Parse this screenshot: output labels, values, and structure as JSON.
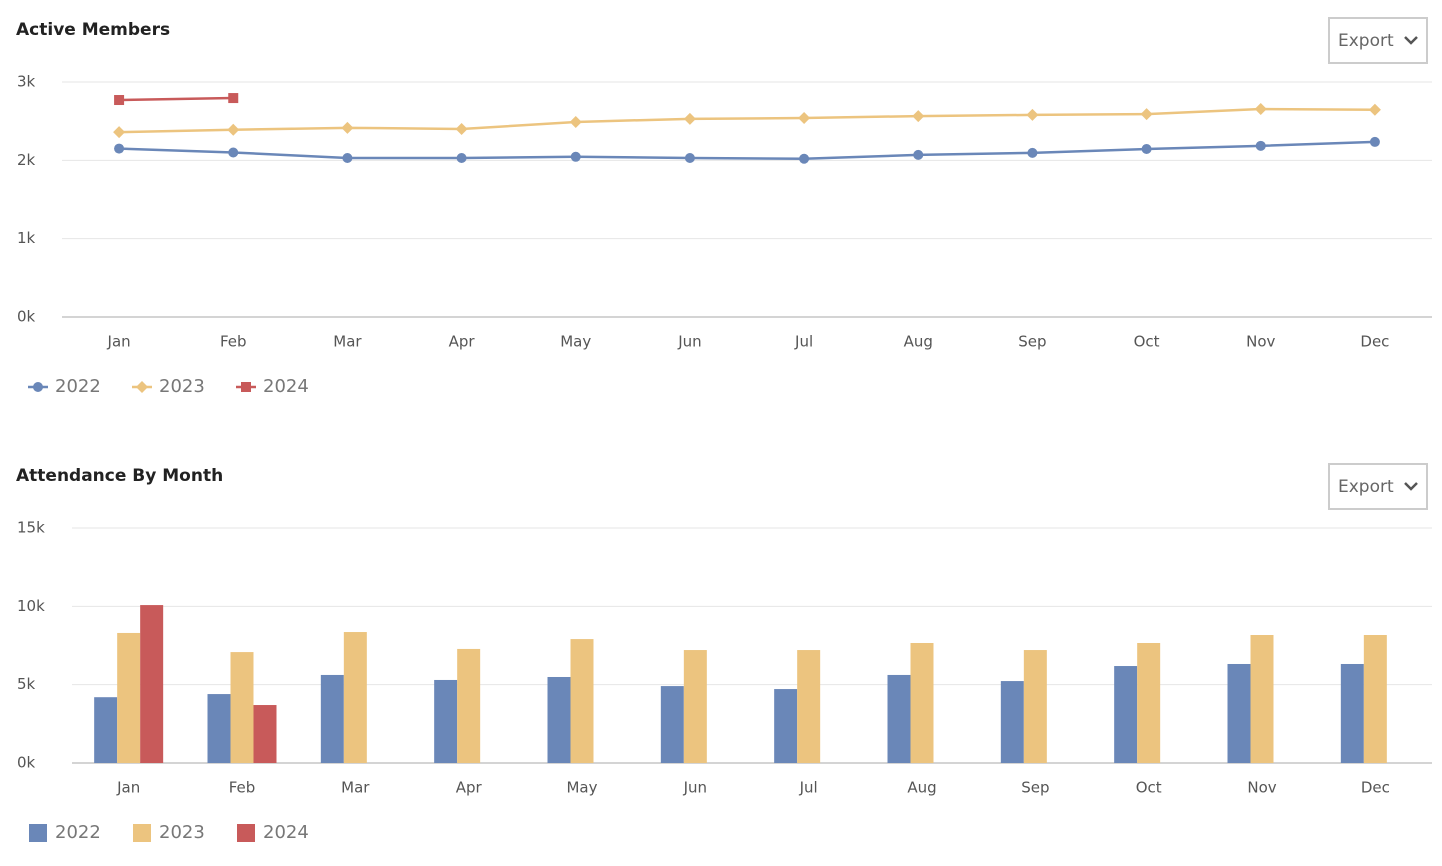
{
  "chart_data": [
    {
      "type": "line",
      "title": "Active Members",
      "export": "Export",
      "categories": [
        "Jan",
        "Feb",
        "Mar",
        "Apr",
        "May",
        "Jun",
        "Jul",
        "Aug",
        "Sep",
        "Oct",
        "Nov",
        "Dec"
      ],
      "series": [
        {
          "name": "2022",
          "color": "#6a87b8",
          "marker": "circle",
          "values": [
            2150,
            2100,
            2030,
            2030,
            2045,
            2030,
            2020,
            2070,
            2095,
            2145,
            2185,
            2235
          ]
        },
        {
          "name": "2023",
          "color": "#ecc47f",
          "marker": "diamond",
          "values": [
            2360,
            2390,
            2415,
            2400,
            2490,
            2530,
            2540,
            2565,
            2580,
            2590,
            2655,
            2645
          ]
        },
        {
          "name": "2024",
          "color": "#c85a5a",
          "marker": "square",
          "values": [
            2770,
            2795,
            null,
            null,
            null,
            null,
            null,
            null,
            null,
            null,
            null,
            null
          ]
        }
      ],
      "ylim": [
        0,
        3000
      ],
      "yticks": [
        {
          "value": 0,
          "label": "0k"
        },
        {
          "value": 1000,
          "label": "1k"
        },
        {
          "value": 2000,
          "label": "2k"
        },
        {
          "value": 3000,
          "label": "3k"
        }
      ],
      "grid": true
    },
    {
      "type": "bar",
      "title": "Attendance By Month",
      "export": "Export",
      "categories": [
        "Jan",
        "Feb",
        "Mar",
        "Apr",
        "May",
        "Jun",
        "Jul",
        "Aug",
        "Sep",
        "Oct",
        "Nov",
        "Dec"
      ],
      "series": [
        {
          "name": "2022",
          "color": "#6a87b8",
          "values": [
            4200,
            4400,
            5620,
            5300,
            5490,
            4910,
            4720,
            5620,
            5230,
            6190,
            6320,
            6320
          ]
        },
        {
          "name": "2023",
          "color": "#ecc47f",
          "values": [
            8300,
            7080,
            8360,
            7280,
            7910,
            7210,
            7210,
            7660,
            7210,
            7660,
            8170,
            8170
          ]
        },
        {
          "name": "2024",
          "color": "#c85a5a",
          "values": [
            10080,
            3700,
            null,
            null,
            null,
            null,
            null,
            null,
            null,
            null,
            null,
            null
          ]
        }
      ],
      "ylim": [
        0,
        15000
      ],
      "yticks": [
        {
          "value": 0,
          "label": "0k"
        },
        {
          "value": 5000,
          "label": "5k"
        },
        {
          "value": 10000,
          "label": "10k"
        },
        {
          "value": 15000,
          "label": "15k"
        }
      ],
      "grid": true
    }
  ]
}
